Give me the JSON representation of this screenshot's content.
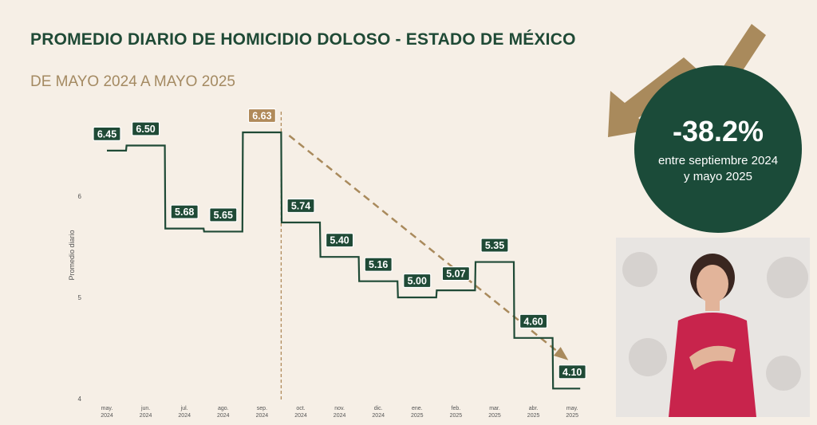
{
  "header": {
    "title": "PROMEDIO DIARIO DE HOMICIDIO DOLOSO - ESTADO DE MÉXICO",
    "subtitle": "DE MAYO 2024 A MAYO 2025"
  },
  "badge": {
    "percent": "-38.2%",
    "note_line1": "entre septiembre 2024",
    "note_line2": "y mayo 2025"
  },
  "colors": {
    "background": "#f6efe6",
    "line": "#1f4a36",
    "peak_label": "#b08a5a",
    "trend_arrow": "#a98a5c",
    "circle": "#1b4b39"
  },
  "chart_data": {
    "type": "line",
    "step": true,
    "categories": [
      "may. 2024",
      "jun. 2024",
      "jul. 2024",
      "ago. 2024",
      "sep. 2024",
      "oct. 2024",
      "nov. 2024",
      "dic. 2024",
      "ene. 2025",
      "feb. 2025",
      "mar. 2025",
      "abr. 2025",
      "may. 2025"
    ],
    "values": [
      6.45,
      6.5,
      5.68,
      5.65,
      6.63,
      5.74,
      5.4,
      5.16,
      5.0,
      5.07,
      5.35,
      4.6,
      4.1
    ],
    "ylabel": "Promedio diario",
    "yticks": [
      4,
      5,
      6
    ],
    "ylim": [
      4,
      6.9
    ],
    "highlight": {
      "category": "sep. 2024",
      "value": 6.63
    },
    "trend": {
      "from": "sep. 2024",
      "to": "may. 2025",
      "style": "dashed arrow"
    }
  }
}
